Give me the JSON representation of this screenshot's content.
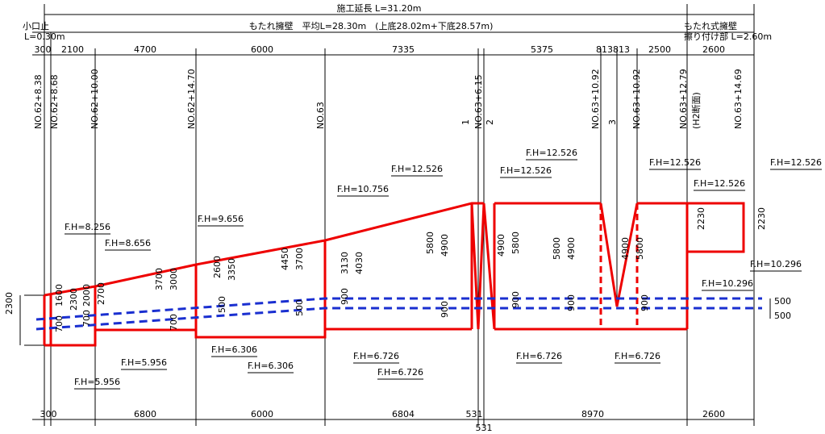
{
  "header": {
    "total": "施工延長 L=31.20m",
    "left_title": "小口止",
    "left_length": "L=0.30m",
    "main": "もたれ擁壁　平均L=28.30m　(上底28.02m+下底28.57m)",
    "right_title": "もたれ式擁壁",
    "right_length": "擦り付け部 L=2.60m"
  },
  "stations": [
    "NO.62+8.38",
    "NO.62+8.68",
    "NO.62+10.00",
    "NO.62+14.70",
    "NO.63",
    "NO.63+6.15",
    "NO.63+10.92",
    "NO.63+10.92",
    "NO.63+12.79",
    "(H2断面)",
    "NO.63+14.69"
  ],
  "joints": [
    "1",
    "2",
    "3"
  ],
  "top_dimensions": [
    "300",
    "2100",
    "4700",
    "6000",
    "7335",
    "5375",
    "813813",
    "2500",
    "2600"
  ],
  "bottom_dimensions": [
    "300",
    "6800",
    "6000",
    "6804",
    "531",
    "531",
    "8970",
    "2600"
  ],
  "fh_labels": [
    "F.H=8.256",
    "F.H=8.656",
    "F.H=9.656",
    "F.H=10.756",
    "F.H=12.526",
    "F.H=12.526",
    "F.H=12.526",
    "F.H=12.526",
    "F.H=12.526",
    "F.H=12.526",
    "F.H=10.296",
    "F.H=10.296",
    "F.H=6.306",
    "F.H=6.306",
    "F.H=5.956",
    "F.H=5.956",
    "F.H=6.726",
    "F.H=6.726",
    "F.H=6.726",
    "F.H=6.726"
  ],
  "height_dims": [
    "2300",
    "1600",
    "2300",
    "700",
    "2000",
    "2700",
    "700",
    "3700",
    "3000",
    "700",
    "2600",
    "3350",
    "500",
    "4450",
    "3700",
    "500",
    "3130",
    "4030",
    "900",
    "5800",
    "4900",
    "900",
    "4900",
    "5800",
    "900",
    "5800",
    "4900",
    "900",
    "4900",
    "5800",
    "900",
    "2230",
    "2230",
    "500",
    "500"
  ]
}
